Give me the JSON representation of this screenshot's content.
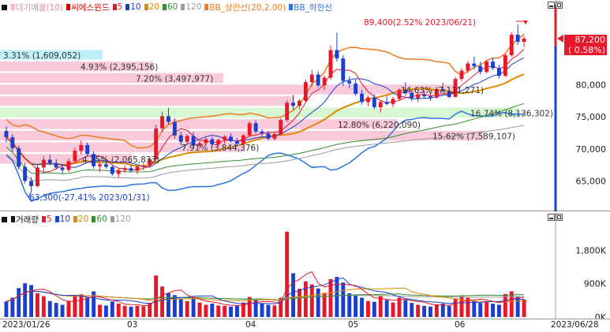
{
  "price_legend": {
    "items": [
      {
        "label": "대기매물(10)",
        "color": "#f8b6cf"
      },
      {
        "label": "씨에스윈드",
        "color": "#d10000"
      },
      {
        "label": "5",
        "color": "#e8172a"
      },
      {
        "label": "10",
        "color": "#1b3fcf"
      },
      {
        "label": "20",
        "color": "#e08a00"
      },
      {
        "label": "60",
        "color": "#2f8f2f"
      },
      {
        "label": "120",
        "color": "#9b9b9b"
      },
      {
        "label": "BB_상한선(20,2.00)",
        "color": "#f07a1f"
      },
      {
        "label": "BB_하한선",
        "color": "#2a73e6"
      }
    ]
  },
  "volume_legend": {
    "items": [
      {
        "label": "거래량",
        "color": "#111111"
      },
      {
        "label": "5",
        "color": "#e8172a"
      },
      {
        "label": "10",
        "color": "#1b3fcf"
      },
      {
        "label": "20",
        "color": "#e08a00"
      },
      {
        "label": "60",
        "color": "#2f8f2f"
      },
      {
        "label": "120",
        "color": "#9b9b9b"
      }
    ]
  },
  "price_axis": {
    "current_price": "87,200",
    "current_change": "( 0.58%)",
    "ticks": [
      "80,000",
      "75,000",
      "70,000",
      "65,000"
    ]
  },
  "volume_axis": {
    "ticks": [
      "1,800K",
      "900K",
      "0K"
    ]
  },
  "date_axis": {
    "start": "2023/01/26",
    "end": "2023/06/28",
    "months": [
      "03",
      "04",
      "05",
      "06"
    ]
  },
  "annotations": {
    "high": "89,400(2.52% 2023/06/21)",
    "low": "63,300(-27.41% 2023/01/31)"
  },
  "volume_profile": [
    {
      "label": "3.31% (1,609,052)",
      "price": 84600,
      "pct": 3.31
    },
    {
      "label": "4.93% (2,395,156)",
      "price": 82800,
      "pct": 4.93
    },
    {
      "label": "7.20% (3,497,977)",
      "price": 81000,
      "pct": 7.2
    },
    {
      "label": "14.63% (7,111,271)",
      "price": 79200,
      "pct": 14.63
    },
    {
      "label": "",
      "price": 77400,
      "pct": 9.5
    },
    {
      "label": "16.74% (8,136,302)",
      "price": 75600,
      "pct": 16.74
    },
    {
      "label": "12.80% (6,220,090)",
      "price": 73800,
      "pct": 12.8
    },
    {
      "label": "15.62% (7,589,107)",
      "price": 72000,
      "pct": 15.62
    },
    {
      "label": "7.91% (3,844,376)",
      "price": 70200,
      "pct": 7.91
    },
    {
      "label": "4.25% (2,065,833)",
      "price": 68400,
      "pct": 4.25
    }
  ],
  "colors": {
    "up": "#e8172a",
    "down": "#1b3fcf",
    "profile_fill": "#f8c9da",
    "profile_highlight": "#bff0f7",
    "profile_green": "#d7f7d2",
    "bb_upper": "#f07a1f",
    "bb_lower": "#2a73e6"
  },
  "chart_data": {
    "type": "candlestick",
    "price_range": [
      61000,
      91000
    ],
    "volume_range": [
      0,
      2400
    ],
    "volume_unit": "K",
    "candles": [
      [
        72800,
        73500,
        71000,
        71800,
        420
      ],
      [
        71800,
        72300,
        69500,
        70100,
        520
      ],
      [
        70100,
        70500,
        66800,
        67200,
        780
      ],
      [
        67200,
        67800,
        64600,
        65000,
        910
      ],
      [
        65000,
        65600,
        63300,
        64200,
        860
      ],
      [
        64200,
        67600,
        64000,
        67100,
        640
      ],
      [
        67100,
        68900,
        66500,
        68300,
        560
      ],
      [
        68300,
        69100,
        67400,
        67800,
        430
      ],
      [
        67800,
        68400,
        66800,
        67100,
        380
      ],
      [
        67100,
        67700,
        66200,
        66700,
        330
      ],
      [
        66700,
        68500,
        66400,
        68100,
        420
      ],
      [
        68100,
        70200,
        67900,
        69700,
        560
      ],
      [
        69700,
        71300,
        69100,
        70600,
        610
      ],
      [
        70600,
        71000,
        68800,
        69200,
        520
      ],
      [
        69200,
        69600,
        66900,
        67300,
        690
      ],
      [
        67300,
        67900,
        66400,
        67600,
        330
      ],
      [
        67600,
        68200,
        66900,
        67200,
        310
      ],
      [
        67200,
        67500,
        65800,
        66100,
        420
      ],
      [
        66100,
        66900,
        65500,
        66700,
        360
      ],
      [
        66700,
        67400,
        66200,
        67000,
        300
      ],
      [
        67000,
        67500,
        66300,
        66600,
        280
      ],
      [
        66600,
        67400,
        66100,
        67200,
        300
      ],
      [
        67200,
        67800,
        66700,
        67400,
        290
      ],
      [
        67400,
        68600,
        67200,
        68400,
        380
      ],
      [
        68400,
        73800,
        68200,
        73200,
        1120
      ],
      [
        73200,
        75800,
        72600,
        75100,
        820
      ],
      [
        75100,
        76400,
        73800,
        74200,
        640
      ],
      [
        74200,
        74800,
        71600,
        72100,
        590
      ],
      [
        72100,
        72700,
        70600,
        71100,
        480
      ],
      [
        71100,
        72300,
        70800,
        72000,
        430
      ],
      [
        72000,
        72600,
        70100,
        70500,
        510
      ],
      [
        70500,
        71300,
        70000,
        70900,
        390
      ],
      [
        70900,
        71800,
        70400,
        71500,
        330
      ],
      [
        71500,
        71900,
        70300,
        70700,
        360
      ],
      [
        70700,
        71600,
        70300,
        71400,
        310
      ],
      [
        71400,
        72100,
        70800,
        71900,
        300
      ],
      [
        71900,
        72400,
        71000,
        71200,
        280
      ],
      [
        71200,
        71700,
        70400,
        70800,
        300
      ],
      [
        70800,
        72300,
        70600,
        72100,
        390
      ],
      [
        72100,
        74300,
        71900,
        74000,
        540
      ],
      [
        74000,
        74500,
        72400,
        72700,
        470
      ],
      [
        72700,
        73100,
        71800,
        72400,
        360
      ],
      [
        72400,
        72800,
        71300,
        71600,
        330
      ],
      [
        71600,
        72600,
        71300,
        72300,
        310
      ],
      [
        72300,
        74800,
        72100,
        74500,
        520
      ],
      [
        74500,
        77600,
        74200,
        77200,
        2300
      ],
      [
        77200,
        78400,
        76100,
        76700,
        1180
      ],
      [
        76700,
        77800,
        76200,
        77500,
        760
      ],
      [
        77500,
        80800,
        77300,
        80400,
        960
      ],
      [
        80400,
        82300,
        79700,
        81600,
        880
      ],
      [
        81600,
        82100,
        79600,
        79900,
        770
      ],
      [
        79900,
        81400,
        79100,
        81100,
        650
      ],
      [
        81100,
        86100,
        80800,
        85400,
        1020
      ],
      [
        85400,
        88100,
        83600,
        84100,
        1080
      ],
      [
        84100,
        84600,
        79800,
        80600,
        930
      ],
      [
        80600,
        81300,
        79400,
        80200,
        640
      ],
      [
        80200,
        80800,
        78300,
        78600,
        580
      ],
      [
        78600,
        79200,
        76900,
        77300,
        520
      ],
      [
        77300,
        78300,
        76700,
        78000,
        430
      ],
      [
        78000,
        78500,
        76200,
        76500,
        410
      ],
      [
        76500,
        77600,
        75700,
        77300,
        560
      ],
      [
        77300,
        78200,
        76800,
        77000,
        460
      ],
      [
        77000,
        78100,
        76500,
        77800,
        390
      ],
      [
        77800,
        79500,
        77500,
        79200,
        520
      ],
      [
        79200,
        80400,
        78300,
        78700,
        460
      ],
      [
        78700,
        79300,
        77400,
        77900,
        380
      ],
      [
        77900,
        78800,
        77300,
        78500,
        330
      ],
      [
        78500,
        79100,
        77800,
        78200,
        300
      ],
      [
        78200,
        78800,
        77500,
        78000,
        280
      ],
      [
        78000,
        79600,
        77800,
        79300,
        340
      ],
      [
        79300,
        80300,
        78700,
        79000,
        360
      ],
      [
        79000,
        79500,
        77900,
        78100,
        300
      ],
      [
        78100,
        81200,
        78000,
        80900,
        500
      ],
      [
        80900,
        82600,
        80500,
        82200,
        560
      ],
      [
        82200,
        83700,
        81800,
        83300,
        520
      ],
      [
        83300,
        84400,
        82400,
        82900,
        440
      ],
      [
        82900,
        83600,
        81600,
        82000,
        380
      ],
      [
        82000,
        83900,
        81800,
        83600,
        410
      ],
      [
        83600,
        84200,
        82300,
        82600,
        360
      ],
      [
        82600,
        83100,
        81000,
        81400,
        330
      ],
      [
        81400,
        84900,
        81200,
        84600,
        620
      ],
      [
        84600,
        88200,
        84400,
        87800,
        690
      ],
      [
        87800,
        89400,
        86200,
        86700,
        540
      ],
      [
        86700,
        87600,
        85900,
        87200,
        470
      ]
    ]
  }
}
